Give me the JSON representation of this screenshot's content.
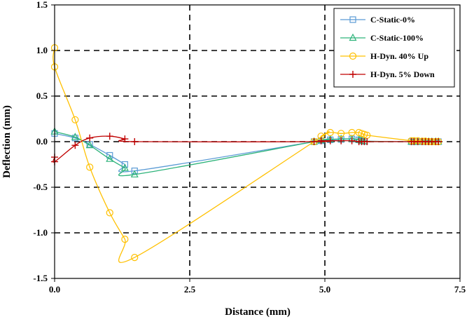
{
  "chart_data": {
    "type": "line",
    "title": "",
    "xlabel": "Distance (mm)",
    "ylabel": "Deflection (mm)",
    "xlim": [
      0,
      7.5
    ],
    "ylim": [
      -1.5,
      1.5
    ],
    "x_ticks": [
      0,
      2.5,
      5,
      7.5
    ],
    "x_tick_labels": [
      "0.0",
      "2.5",
      "5.0",
      "7.5"
    ],
    "y_ticks": [
      1.5,
      1.0,
      0.5,
      0.0,
      -0.5,
      -1.0,
      -1.5
    ],
    "y_tick_labels": [
      "1.5",
      "1.0",
      "0.5",
      "0.0",
      "-0.5",
      "-1.0",
      "-1.5"
    ],
    "grid": "dashed",
    "legend_position": "top-right",
    "series": [
      {
        "name": "C-Static-0%",
        "color": "#5B9BD5",
        "marker": "square",
        "x": [
          0.0,
          0.38,
          0.65,
          1.02,
          1.3,
          1.48,
          4.8,
          4.93,
          5.1,
          5.3,
          5.5,
          5.63,
          5.68,
          5.73,
          6.6,
          6.65,
          6.72,
          6.8,
          6.86,
          6.92,
          6.98,
          7.05,
          7.1
        ],
        "y": [
          0.09,
          0.04,
          -0.03,
          -0.15,
          -0.25,
          -0.32,
          0.0,
          0.01,
          0.02,
          0.025,
          0.03,
          0.02,
          0.01,
          0.005,
          0.0,
          0.0,
          0.0,
          0.0,
          0.0,
          0.0,
          0.0,
          0.0,
          0.0
        ]
      },
      {
        "name": "C-Static-100%",
        "color": "#2DB37A",
        "marker": "triangle",
        "x": [
          0.0,
          0.38,
          0.65,
          1.02,
          1.3,
          1.48,
          4.8,
          4.93,
          5.1,
          5.3,
          5.5,
          5.63,
          5.68,
          5.73,
          6.6,
          6.65,
          6.72,
          6.8,
          6.86,
          6.92,
          6.98,
          7.05,
          7.1
        ],
        "y": [
          0.11,
          0.05,
          -0.04,
          -0.19,
          -0.29,
          -0.36,
          0.0,
          0.015,
          0.025,
          0.03,
          0.03,
          0.02,
          0.01,
          0.005,
          0.0,
          0.0,
          0.0,
          0.0,
          0.0,
          0.0,
          0.0,
          0.0,
          0.0
        ]
      },
      {
        "name": "H-Dyn. 40% Up",
        "color": "#FFC000",
        "marker": "circle",
        "x": [
          0.0,
          0.0,
          0.38,
          0.65,
          1.02,
          1.3,
          1.48,
          4.8,
          4.93,
          5.1,
          5.3,
          5.5,
          5.63,
          5.68,
          5.73,
          5.78,
          6.6,
          6.65,
          6.72,
          6.8,
          6.86,
          6.92,
          6.98,
          7.05,
          7.1
        ],
        "y": [
          1.03,
          0.82,
          0.24,
          -0.28,
          -0.78,
          -1.07,
          -1.27,
          0.0,
          0.06,
          0.1,
          0.09,
          0.1,
          0.1,
          0.09,
          0.08,
          0.07,
          0.01,
          0.01,
          0.01,
          0.005,
          0.005,
          0.0,
          0.0,
          0.0,
          0.0
        ]
      },
      {
        "name": "H-Dyn. 5% Down",
        "color": "#C00000",
        "marker": "plus",
        "x": [
          0.0,
          0.0,
          0.38,
          0.65,
          1.02,
          1.3,
          1.48,
          4.8,
          4.93,
          5.1,
          5.3,
          5.5,
          5.63,
          5.68,
          5.73,
          5.78,
          6.6,
          6.65,
          6.72,
          6.8,
          6.86,
          6.92,
          6.98,
          7.05,
          7.1
        ],
        "y": [
          -0.17,
          -0.22,
          -0.04,
          0.04,
          0.06,
          0.03,
          0.0,
          0.0,
          0.01,
          0.01,
          0.01,
          0.01,
          0.0,
          0.0,
          0.0,
          0.0,
          0.0,
          0.0,
          0.0,
          0.0,
          0.0,
          0.0,
          0.0,
          0.0,
          0.0
        ]
      }
    ]
  }
}
